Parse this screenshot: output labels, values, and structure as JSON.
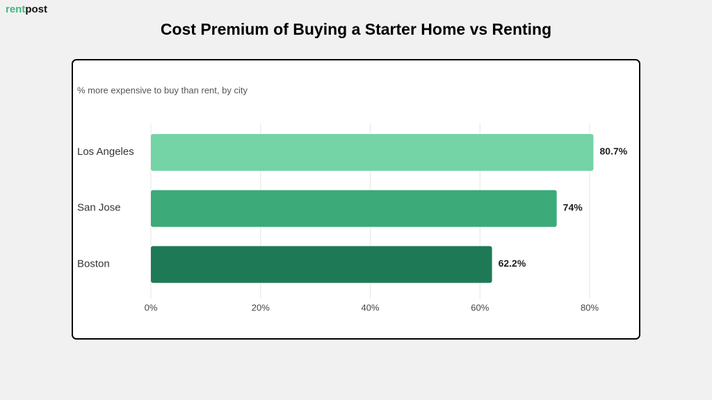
{
  "logo": {
    "first": "rent",
    "second": "post"
  },
  "chart_data": {
    "type": "bar",
    "orientation": "horizontal",
    "title": "Cost Premium of Buying a Starter Home vs Renting",
    "subtitle": "% more expensive to buy than rent, by city",
    "categories": [
      "Los Angeles",
      "San Jose",
      "Boston"
    ],
    "values": [
      80.7,
      74,
      62.2
    ],
    "value_labels": [
      "80.7%",
      "74%",
      "62.2%"
    ],
    "colors": [
      "#74d4a6",
      "#3daa7a",
      "#1e7a56"
    ],
    "xlim": [
      0,
      80
    ],
    "xticks": [
      {
        "value": 0,
        "label": "0%"
      },
      {
        "value": 20,
        "label": "20%"
      },
      {
        "value": 40,
        "label": "40%"
      },
      {
        "value": 60,
        "label": "60%"
      },
      {
        "value": 80,
        "label": "80%"
      }
    ],
    "grid": true
  }
}
